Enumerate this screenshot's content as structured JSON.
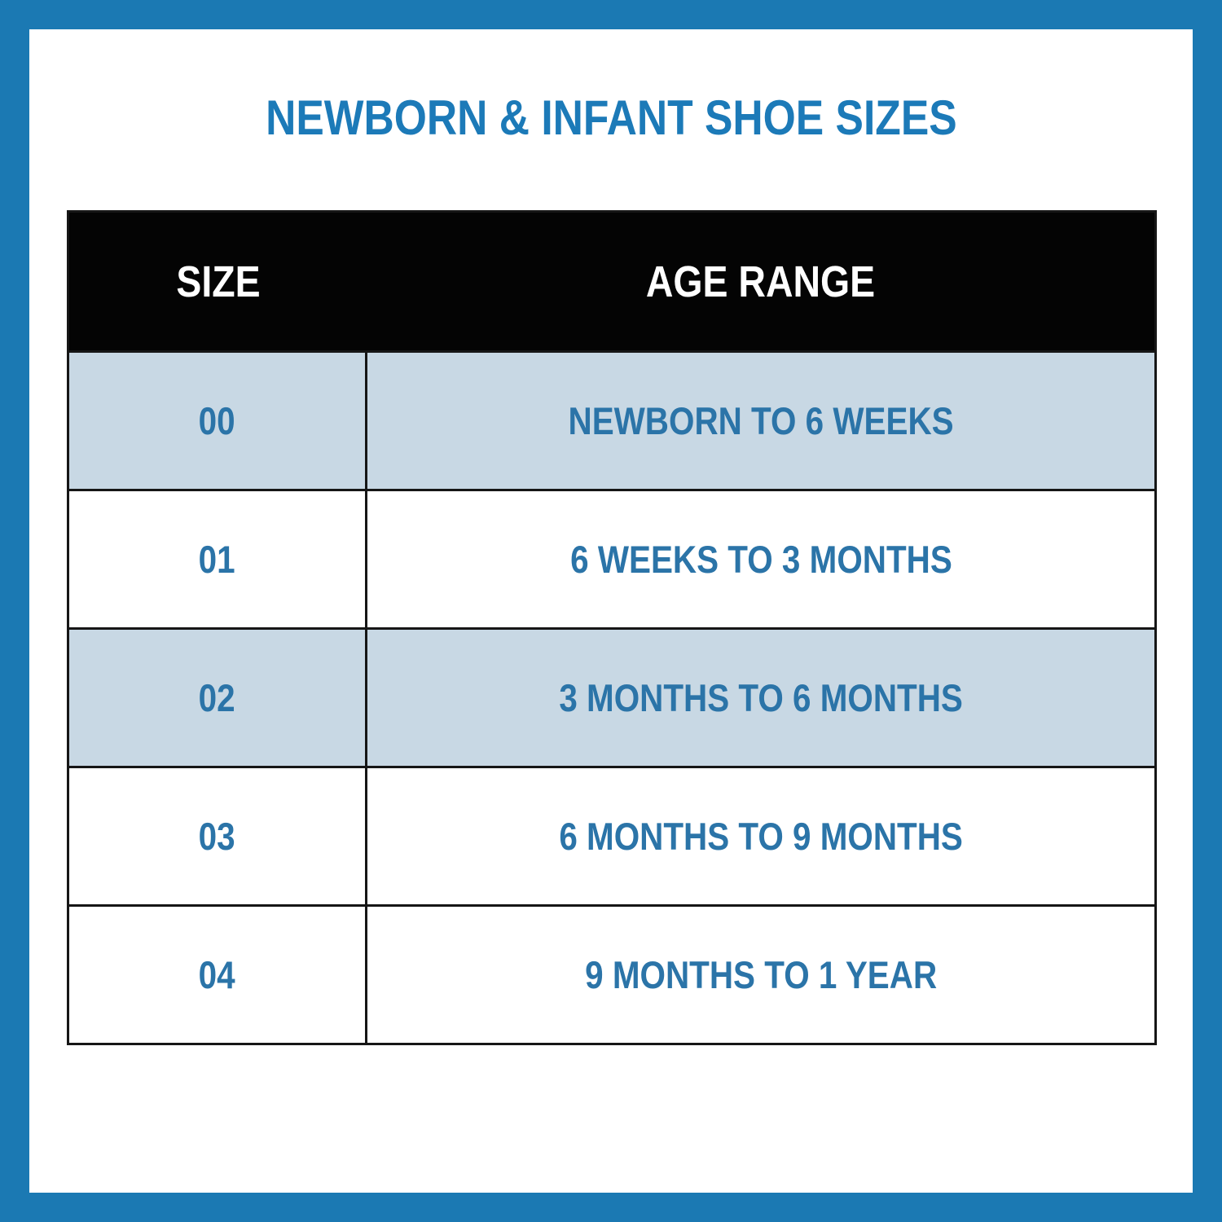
{
  "title": {
    "text": "NEWBORN & INFANT SHOE SIZES",
    "color": "#1c7ab8"
  },
  "frame": {
    "border_color": "#1b79b3",
    "background": "#ffffff"
  },
  "table": {
    "columns": {
      "size": "SIZE",
      "age_range": "AGE RANGE"
    },
    "header_bg": "#040404",
    "header_text_color": "#ffffff",
    "row_text_color": "#2b74a8",
    "shaded_row_bg": "#c8d8e4",
    "rows": [
      {
        "size": "00",
        "age_range": "NEWBORN TO 6 WEEKS"
      },
      {
        "size": "01",
        "age_range": "6 WEEKS TO 3 MONTHS"
      },
      {
        "size": "02",
        "age_range": "3 MONTHS TO 6 MONTHS"
      },
      {
        "size": "03",
        "age_range": "6 MONTHS TO 9 MONTHS"
      },
      {
        "size": "04",
        "age_range": "9 MONTHS TO 1 YEAR"
      }
    ]
  }
}
